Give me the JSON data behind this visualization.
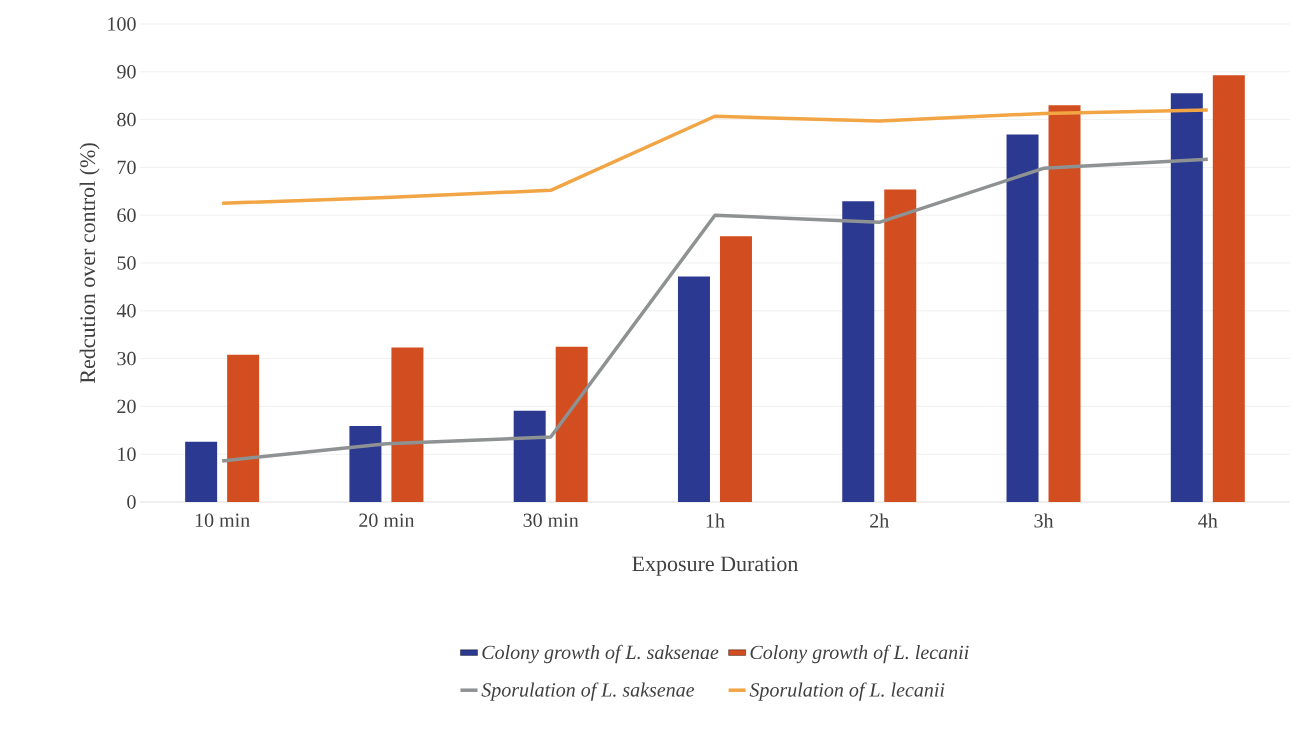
{
  "chart_data": {
    "type": "bar",
    "xlabel": "Exposure Duration",
    "ylabel": "Redcution over control (%)",
    "categories": [
      "10 min",
      "20 min",
      "30 min",
      "1h",
      "2h",
      "3h",
      "4h"
    ],
    "series": [
      {
        "name": "Colony growth of L. saksenae",
        "color": "#2b3990",
        "values": [
          12.6,
          15.9,
          19.1,
          47.2,
          62.9,
          76.9,
          85.5
        ]
      },
      {
        "name": "Colony growth of L. lecanii",
        "color": "#d24d1f",
        "values": [
          30.8,
          32.3,
          32.5,
          55.6,
          65.4,
          83.0,
          89.3
        ]
      },
      {
        "name": "Sporulation of L. saksenae",
        "type": "line",
        "color": "#8e9293",
        "values": [
          8.6,
          12.2,
          13.6,
          60.0,
          58.5,
          69.8,
          71.7
        ]
      },
      {
        "name": "Sporulation of L. lecanii",
        "type": "line",
        "color": "#f2a544",
        "values": [
          62.5,
          63.7,
          65.2,
          80.7,
          79.7,
          81.3,
          82.0
        ]
      }
    ],
    "ylim": [
      0,
      100
    ],
    "yticks": [
      0,
      10,
      20,
      30,
      40,
      50,
      60,
      70,
      80,
      90,
      100
    ],
    "grid": "y",
    "legend": "bottom",
    "marker": "none",
    "line_style": "solid"
  }
}
